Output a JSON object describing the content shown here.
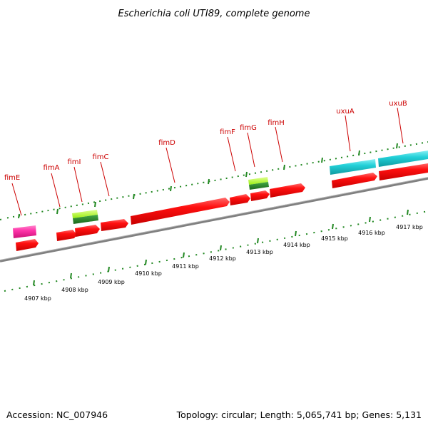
{
  "title": "Escherichia coli UTI89, complete genome",
  "footer": {
    "accession": "Accession: NC_007946",
    "summary": "Topology: circular; Length: 5,065,741 bp; Genes: 5,131"
  },
  "colors": {
    "gene_red": "#ff1010",
    "gene_pink": "#ff33aa",
    "gene_cyan": "#22d0d8",
    "gene_green_top": "#aaff22",
    "gene_green_bottom": "#228822",
    "label_red": "#cc0000",
    "tick_green": "#228822",
    "backbone_gray": "#808080"
  },
  "scale_labels": [
    "4907 kbp",
    "4908 kbp",
    "4909 kbp",
    "4910 kbp",
    "4911 kbp",
    "4912 kbp",
    "4913 kbp",
    "4914 kbp",
    "4915 kbp",
    "4916 kbp",
    "4917 kbp"
  ],
  "gene_labels": [
    "fimE",
    "fimA",
    "fimI",
    "fimC",
    "fimD",
    "fimF",
    "fimG",
    "fimH",
    "uxuA",
    "uxuB"
  ]
}
